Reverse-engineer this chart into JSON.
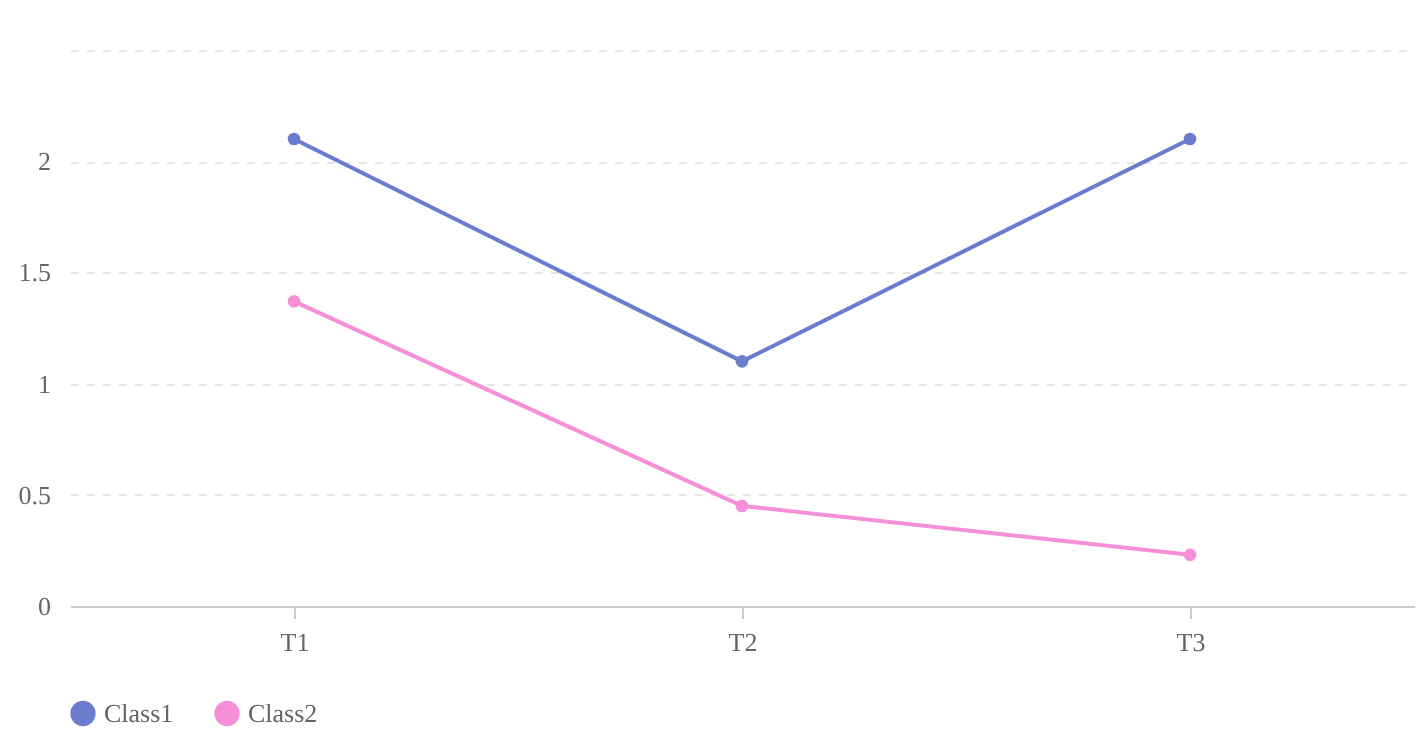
{
  "chart_data": {
    "type": "line",
    "categories": [
      "T1",
      "T2",
      "T3"
    ],
    "series": [
      {
        "name": "Class1",
        "color": "#6b7ccc",
        "values": [
          2.1,
          1.1,
          2.1
        ]
      },
      {
        "name": "Class2",
        "color": "#f48fd8",
        "values": [
          1.37,
          0.45,
          0.23
        ]
      }
    ],
    "ylim": [
      0,
      2.5
    ],
    "yticks": [
      0,
      0.5,
      1,
      1.5,
      2,
      {
        "value": 2.5,
        "label": null
      }
    ],
    "grid": "y",
    "legend": "bottom",
    "marker": "circle",
    "line_style": "solid"
  }
}
